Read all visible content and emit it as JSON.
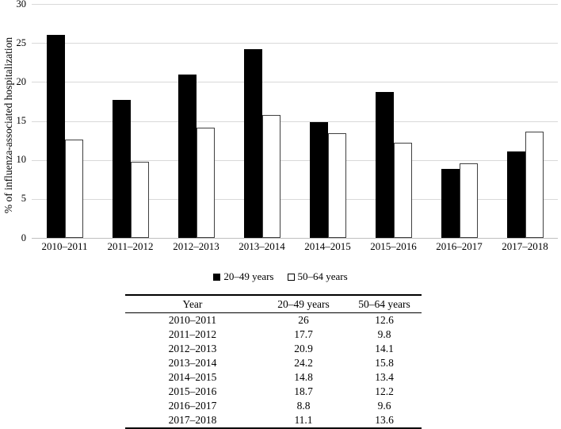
{
  "chart_data": {
    "type": "bar",
    "title": "",
    "xlabel": "",
    "ylabel": "% of influenza-associated hospitalization",
    "categories": [
      "2010–2011",
      "2011–2012",
      "2012–2013",
      "2013–2014",
      "2014–2015",
      "2015–2016",
      "2016–2017",
      "2017–2018"
    ],
    "series": [
      {
        "name": "20–49 years",
        "values": [
          26,
          17.7,
          20.9,
          24.2,
          14.8,
          18.7,
          8.8,
          11.1
        ]
      },
      {
        "name": "50–64 years",
        "values": [
          12.6,
          9.8,
          14.1,
          15.8,
          13.4,
          12.2,
          9.6,
          13.6
        ]
      }
    ],
    "ylim": [
      0,
      30
    ],
    "yticks": [
      0,
      5,
      10,
      15,
      20,
      25,
      30
    ],
    "grid": true,
    "legend_position": "bottom"
  },
  "legend": {
    "items": [
      {
        "label": "20–49 years",
        "swatch": "filled-black-square"
      },
      {
        "label": "50–64 years",
        "swatch": "white-outlined-square"
      }
    ]
  },
  "table": {
    "headers": [
      "Year",
      "20–49 years",
      "50–64 years"
    ],
    "rows": [
      [
        "2010–2011",
        "26",
        "12.6"
      ],
      [
        "2011–2012",
        "17.7",
        "9.8"
      ],
      [
        "2012–2013",
        "20.9",
        "14.1"
      ],
      [
        "2013–2014",
        "24.2",
        "15.8"
      ],
      [
        "2014–2015",
        "14.8",
        "13.4"
      ],
      [
        "2015–2016",
        "18.7",
        "12.2"
      ],
      [
        "2016–2017",
        "8.8",
        "9.6"
      ],
      [
        "2017–2018",
        "11.1",
        "13.6"
      ]
    ]
  },
  "colors": {
    "series1_fill": "#000000",
    "series2_fill": "#ffffff",
    "series2_border": "#404040",
    "gridline": "#d9d9d9",
    "axis_line": "#bfbfbf",
    "text": "#000000"
  }
}
